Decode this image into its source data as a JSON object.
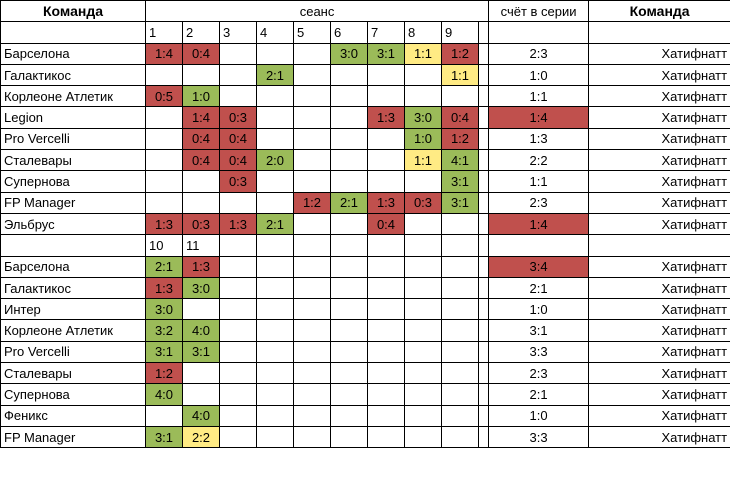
{
  "headers": {
    "team_left": "Команда",
    "session": "сеанс",
    "series_score": "счёт в серии",
    "team_right": "Команда"
  },
  "section1": {
    "sessions": [
      "1",
      "2",
      "3",
      "4",
      "5",
      "6",
      "7",
      "8",
      "9"
    ],
    "rows": [
      {
        "team": "Барселона",
        "cells": [
          {
            "v": "1:4",
            "c": "red"
          },
          {
            "v": "0:4",
            "c": "red"
          },
          {
            "v": "",
            "c": ""
          },
          {
            "v": "",
            "c": ""
          },
          {
            "v": "",
            "c": ""
          },
          {
            "v": "3:0",
            "c": "green"
          },
          {
            "v": "3:1",
            "c": "green"
          },
          {
            "v": "1:1",
            "c": "yellow"
          },
          {
            "v": "1:2",
            "c": "red"
          }
        ],
        "series": "2:3",
        "series_c": "",
        "opponent": "Хатифнатт"
      },
      {
        "team": "Галактикос",
        "cells": [
          {
            "v": "",
            "c": ""
          },
          {
            "v": "",
            "c": ""
          },
          {
            "v": "",
            "c": ""
          },
          {
            "v": "2:1",
            "c": "green"
          },
          {
            "v": "",
            "c": ""
          },
          {
            "v": "",
            "c": ""
          },
          {
            "v": "",
            "c": ""
          },
          {
            "v": "",
            "c": ""
          },
          {
            "v": "1:1",
            "c": "yellow"
          }
        ],
        "series": "1:0",
        "series_c": "",
        "opponent": "Хатифнатт"
      },
      {
        "team": "Корлеоне Атлетик",
        "cells": [
          {
            "v": "0:5",
            "c": "red"
          },
          {
            "v": "1:0",
            "c": "green"
          },
          {
            "v": "",
            "c": ""
          },
          {
            "v": "",
            "c": ""
          },
          {
            "v": "",
            "c": ""
          },
          {
            "v": "",
            "c": ""
          },
          {
            "v": "",
            "c": ""
          },
          {
            "v": "",
            "c": ""
          },
          {
            "v": "",
            "c": ""
          }
        ],
        "series": "1:1",
        "series_c": "",
        "opponent": "Хатифнатт"
      },
      {
        "team": "Legion",
        "cells": [
          {
            "v": "",
            "c": ""
          },
          {
            "v": "1:4",
            "c": "red"
          },
          {
            "v": "0:3",
            "c": "red"
          },
          {
            "v": "",
            "c": ""
          },
          {
            "v": "",
            "c": ""
          },
          {
            "v": "",
            "c": ""
          },
          {
            "v": "1:3",
            "c": "red"
          },
          {
            "v": "3:0",
            "c": "green"
          },
          {
            "v": "0:4",
            "c": "red"
          }
        ],
        "series": "1:4",
        "series_c": "red",
        "opponent": "Хатифнатт"
      },
      {
        "team": "Pro Vercelli",
        "cells": [
          {
            "v": "",
            "c": ""
          },
          {
            "v": "0:4",
            "c": "red"
          },
          {
            "v": "0:4",
            "c": "red"
          },
          {
            "v": "",
            "c": ""
          },
          {
            "v": "",
            "c": ""
          },
          {
            "v": "",
            "c": ""
          },
          {
            "v": "",
            "c": ""
          },
          {
            "v": "1:0",
            "c": "green"
          },
          {
            "v": "1:2",
            "c": "red"
          }
        ],
        "series": "1:3",
        "series_c": "",
        "opponent": "Хатифнатт"
      },
      {
        "team": "Сталевары",
        "cells": [
          {
            "v": "",
            "c": ""
          },
          {
            "v": "0:4",
            "c": "red"
          },
          {
            "v": "0:4",
            "c": "red"
          },
          {
            "v": "2:0",
            "c": "green"
          },
          {
            "v": "",
            "c": ""
          },
          {
            "v": "",
            "c": ""
          },
          {
            "v": "",
            "c": ""
          },
          {
            "v": "1:1",
            "c": "yellow"
          },
          {
            "v": "4:1",
            "c": "green"
          }
        ],
        "series": "2:2",
        "series_c": "",
        "opponent": "Хатифнатт"
      },
      {
        "team": "Супернова",
        "cells": [
          {
            "v": "",
            "c": ""
          },
          {
            "v": "",
            "c": ""
          },
          {
            "v": "0:3",
            "c": "red"
          },
          {
            "v": "",
            "c": ""
          },
          {
            "v": "",
            "c": ""
          },
          {
            "v": "",
            "c": ""
          },
          {
            "v": "",
            "c": ""
          },
          {
            "v": "",
            "c": ""
          },
          {
            "v": "3:1",
            "c": "green"
          }
        ],
        "series": "1:1",
        "series_c": "",
        "opponent": "Хатифнатт"
      },
      {
        "team": "FP Manager",
        "cells": [
          {
            "v": "",
            "c": ""
          },
          {
            "v": "",
            "c": ""
          },
          {
            "v": "",
            "c": ""
          },
          {
            "v": "",
            "c": ""
          },
          {
            "v": "1:2",
            "c": "red"
          },
          {
            "v": "2:1",
            "c": "green"
          },
          {
            "v": "1:3",
            "c": "red"
          },
          {
            "v": "0:3",
            "c": "red"
          },
          {
            "v": "3:1",
            "c": "green"
          }
        ],
        "series": "2:3",
        "series_c": "",
        "opponent": "Хатифнатт"
      },
      {
        "team": "Эльбрус",
        "cells": [
          {
            "v": "1:3",
            "c": "red"
          },
          {
            "v": "0:3",
            "c": "red"
          },
          {
            "v": "1:3",
            "c": "red"
          },
          {
            "v": "2:1",
            "c": "green"
          },
          {
            "v": "",
            "c": ""
          },
          {
            "v": "",
            "c": ""
          },
          {
            "v": "0:4",
            "c": "red"
          },
          {
            "v": "",
            "c": ""
          },
          {
            "v": "",
            "c": ""
          }
        ],
        "series": "1:4",
        "series_c": "red",
        "opponent": "Хатифнатт"
      }
    ]
  },
  "section2": {
    "sessions": [
      "10",
      "11"
    ],
    "rows": [
      {
        "team": "Барселона",
        "cells": [
          {
            "v": "2:1",
            "c": "green"
          },
          {
            "v": "1:3",
            "c": "red"
          }
        ],
        "series": "3:4",
        "series_c": "red",
        "opponent": "Хатифнатт"
      },
      {
        "team": "Галактикос",
        "cells": [
          {
            "v": "1:3",
            "c": "red"
          },
          {
            "v": "3:0",
            "c": "green"
          }
        ],
        "series": "2:1",
        "series_c": "",
        "opponent": "Хатифнатт"
      },
      {
        "team": "Интер",
        "cells": [
          {
            "v": "3:0",
            "c": "green"
          },
          {
            "v": "",
            "c": ""
          }
        ],
        "series": "1:0",
        "series_c": "",
        "opponent": "Хатифнатт"
      },
      {
        "team": "Корлеоне Атлетик",
        "cells": [
          {
            "v": "3:2",
            "c": "green"
          },
          {
            "v": "4:0",
            "c": "green"
          }
        ],
        "series": "3:1",
        "series_c": "",
        "opponent": "Хатифнатт"
      },
      {
        "team": "Pro Vercelli",
        "cells": [
          {
            "v": "3:1",
            "c": "green"
          },
          {
            "v": "3:1",
            "c": "green"
          }
        ],
        "series": "3:3",
        "series_c": "",
        "opponent": "Хатифнатт"
      },
      {
        "team": "Сталевары",
        "cells": [
          {
            "v": "1:2",
            "c": "red"
          },
          {
            "v": "",
            "c": ""
          }
        ],
        "series": "2:3",
        "series_c": "",
        "opponent": "Хатифнатт"
      },
      {
        "team": "Супернова",
        "cells": [
          {
            "v": "4:0",
            "c": "green"
          },
          {
            "v": "",
            "c": ""
          }
        ],
        "series": "2:1",
        "series_c": "",
        "opponent": "Хатифнатт"
      },
      {
        "team": "Феникс",
        "cells": [
          {
            "v": "",
            "c": ""
          },
          {
            "v": "4:0",
            "c": "green"
          }
        ],
        "series": "1:0",
        "series_c": "",
        "opponent": "Хатифнатт"
      },
      {
        "team": "FP Manager",
        "cells": [
          {
            "v": "3:1",
            "c": "green"
          },
          {
            "v": "2:2",
            "c": "yellow"
          }
        ],
        "series": "3:3",
        "series_c": "",
        "opponent": "Хатифнатт"
      }
    ]
  }
}
